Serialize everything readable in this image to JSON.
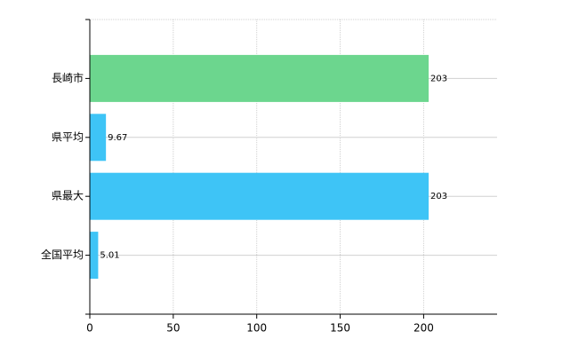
{
  "chart_data": {
    "type": "bar",
    "orientation": "horizontal",
    "categories": [
      "長崎市",
      "県平均",
      "県最大",
      "全国平均"
    ],
    "values": [
      203,
      9.67,
      203,
      5.01
    ],
    "colors": [
      "#6cd68e",
      "#3ec4f6",
      "#3ec4f6",
      "#3ec4f6"
    ],
    "xlim": [
      0,
      244
    ],
    "xticks": [
      0,
      50,
      100,
      150,
      200
    ],
    "grid": true
  }
}
